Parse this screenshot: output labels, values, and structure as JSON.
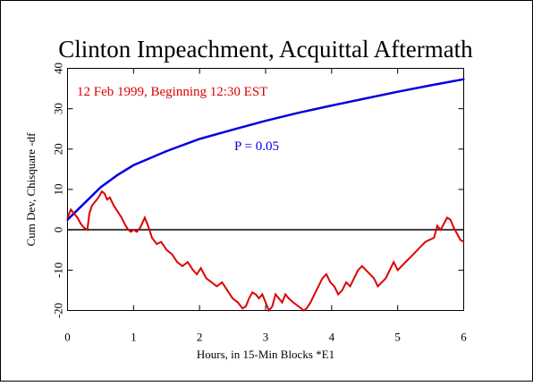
{
  "chart_data": {
    "type": "line",
    "title": "Clinton Impeachment, Acquittal Aftermath",
    "xlabel": "Hours, in 15-Min Blocks  *E1",
    "ylabel": "Cum Dev, Chisquare -df",
    "annotation_date": "12 Feb 1999, Beginning 12:30 EST",
    "annotation_p": "P = 0.05",
    "xlim": [
      0,
      6
    ],
    "ylim": [
      -20,
      40
    ],
    "x_ticks": [
      0,
      1,
      2,
      3,
      4,
      5,
      6
    ],
    "y_ticks": [
      -20,
      -10,
      0,
      10,
      20,
      30,
      40
    ],
    "grid": false,
    "colors": {
      "data": "#dd0000",
      "probability": "#0000dd",
      "zero": "#000000",
      "annotation_date": "#dd0000",
      "annotation_p": "#0000dd"
    },
    "series": [
      {
        "role": "data",
        "x": [
          0,
          0.05,
          0.1,
          0.15,
          0.2,
          0.25,
          0.3,
          0.33,
          0.37,
          0.42,
          0.47,
          0.52,
          0.56,
          0.6,
          0.64,
          0.7,
          0.76,
          0.82,
          0.88,
          0.92,
          0.96,
          1.0,
          1.05,
          1.1,
          1.17,
          1.22,
          1.28,
          1.35,
          1.42,
          1.5,
          1.58,
          1.66,
          1.74,
          1.82,
          1.9,
          1.96,
          2.02,
          2.1,
          2.18,
          2.26,
          2.34,
          2.42,
          2.5,
          2.58,
          2.65,
          2.7,
          2.75,
          2.8,
          2.85,
          2.9,
          2.95,
          3.0,
          3.05,
          3.1,
          3.15,
          3.2,
          3.25,
          3.3,
          3.35,
          3.42,
          3.5,
          3.58,
          3.62,
          3.68,
          3.74,
          3.8,
          3.86,
          3.92,
          3.98,
          4.04,
          4.1,
          4.16,
          4.22,
          4.28,
          4.34,
          4.4,
          4.46,
          4.52,
          4.58,
          4.64,
          4.7,
          4.76,
          4.82,
          4.88,
          4.94,
          5.0,
          5.06,
          5.12,
          5.18,
          5.24,
          5.3,
          5.36,
          5.42,
          5.48,
          5.55,
          5.6,
          5.65,
          5.7,
          5.75,
          5.8,
          5.85,
          5.9,
          5.95,
          6.0
        ],
        "values": [
          3,
          5,
          4,
          3,
          1.5,
          0.5,
          0,
          4,
          6,
          7,
          8,
          9.5,
          9,
          7.5,
          8,
          6,
          4.5,
          3,
          1,
          0,
          -0.5,
          0,
          -0.5,
          0.5,
          3,
          1,
          -2,
          -3.5,
          -3,
          -5,
          -6,
          -8,
          -9,
          -8,
          -10,
          -11,
          -9.5,
          -12,
          -13,
          -14,
          -13,
          -15,
          -17,
          -18,
          -19.5,
          -19,
          -17,
          -15.5,
          -16,
          -17,
          -16,
          -18,
          -20,
          -19,
          -16,
          -17,
          -18,
          -16,
          -17,
          -18,
          -19,
          -20,
          -19.5,
          -18,
          -16,
          -14,
          -12,
          -11,
          -13,
          -14,
          -16,
          -15,
          -13,
          -14,
          -12,
          -10,
          -9,
          -10,
          -11,
          -12,
          -14,
          -13,
          -12,
          -10,
          -8,
          -10,
          -9,
          -8,
          -7,
          -6,
          -5,
          -4,
          -3,
          -2.5,
          -2,
          1,
          0,
          1.5,
          3,
          2.5,
          0.5,
          -1,
          -2.5,
          -3
        ]
      },
      {
        "role": "probability",
        "x": [
          0,
          0.25,
          0.5,
          0.75,
          1.0,
          1.5,
          2.0,
          2.5,
          3.0,
          3.5,
          4.0,
          4.5,
          5.0,
          5.5,
          6.0
        ],
        "values": [
          2.5,
          6.5,
          10.5,
          13.5,
          16,
          19.5,
          22.5,
          24.8,
          27,
          29,
          30.8,
          32.5,
          34.2,
          35.8,
          37.3
        ]
      }
    ]
  }
}
